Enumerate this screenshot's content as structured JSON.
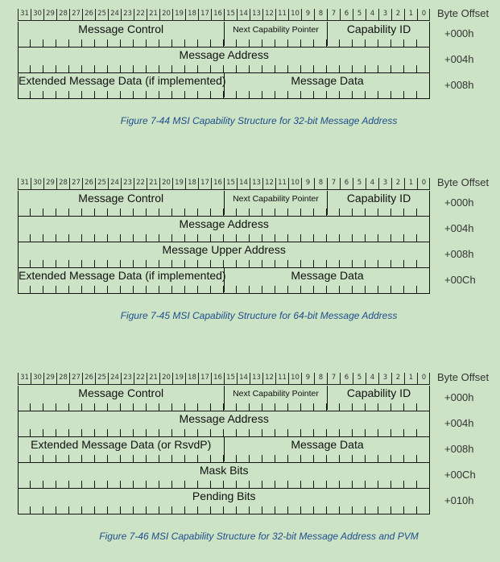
{
  "header": {
    "bits": [
      "31",
      "30",
      "29",
      "28",
      "27",
      "26",
      "25",
      "24",
      "23",
      "22",
      "21",
      "20",
      "19",
      "18",
      "17",
      "16",
      "15",
      "14",
      "13",
      "12",
      "11",
      "10",
      "9",
      "8",
      "7",
      "6",
      "5",
      "4",
      "3",
      "2",
      "1",
      "0"
    ],
    "byte_offset_label": "Byte Offset"
  },
  "figures": [
    {
      "caption": "Figure  7-44  MSI Capability Structure for 32-bit Message Address",
      "rows": [
        {
          "offset": "+000h",
          "cells": [
            {
              "label": "Message Control",
              "from": 31,
              "to": 16
            },
            {
              "label": "Next Capability Pointer",
              "from": 15,
              "to": 8,
              "small": true
            },
            {
              "label": "Capability ID",
              "from": 7,
              "to": 0
            }
          ]
        },
        {
          "offset": "+004h",
          "cells": [
            {
              "label": "Message Address",
              "from": 31,
              "to": 0
            }
          ]
        },
        {
          "offset": "+008h",
          "cells": [
            {
              "label": "Extended Message Data (if implemented)",
              "from": 31,
              "to": 16
            },
            {
              "label": "Message Data",
              "from": 15,
              "to": 0
            }
          ]
        }
      ]
    },
    {
      "caption": "Figure  7-45  MSI Capability Structure for 64-bit Message Address",
      "rows": [
        {
          "offset": "+000h",
          "cells": [
            {
              "label": "Message Control",
              "from": 31,
              "to": 16
            },
            {
              "label": "Next Capability Pointer",
              "from": 15,
              "to": 8,
              "small": true
            },
            {
              "label": "Capability ID",
              "from": 7,
              "to": 0
            }
          ]
        },
        {
          "offset": "+004h",
          "cells": [
            {
              "label": "Message Address",
              "from": 31,
              "to": 0
            }
          ]
        },
        {
          "offset": "+008h",
          "cells": [
            {
              "label": "Message Upper Address",
              "from": 31,
              "to": 0
            }
          ]
        },
        {
          "offset": "+00Ch",
          "cells": [
            {
              "label": "Extended Message Data (if implemented)",
              "from": 31,
              "to": 16
            },
            {
              "label": "Message Data",
              "from": 15,
              "to": 0
            }
          ]
        }
      ]
    },
    {
      "caption": "Figure  7-46  MSI Capability Structure for 32-bit Message Address and PVM",
      "rows": [
        {
          "offset": "+000h",
          "cells": [
            {
              "label": "Message Control",
              "from": 31,
              "to": 16
            },
            {
              "label": "Next Capability Pointer",
              "from": 15,
              "to": 8,
              "small": true
            },
            {
              "label": "Capability ID",
              "from": 7,
              "to": 0
            }
          ]
        },
        {
          "offset": "+004h",
          "cells": [
            {
              "label": "Message Address",
              "from": 31,
              "to": 0
            }
          ]
        },
        {
          "offset": "+008h",
          "cells": [
            {
              "label": "Extended Message Data (or RsvdP)",
              "from": 31,
              "to": 16
            },
            {
              "label": "Message Data",
              "from": 15,
              "to": 0
            }
          ]
        },
        {
          "offset": "+00Ch",
          "cells": [
            {
              "label": "Mask Bits",
              "from": 31,
              "to": 0
            }
          ]
        },
        {
          "offset": "+010h",
          "cells": [
            {
              "label": "Pending Bits",
              "from": 31,
              "to": 0
            }
          ]
        }
      ]
    }
  ]
}
